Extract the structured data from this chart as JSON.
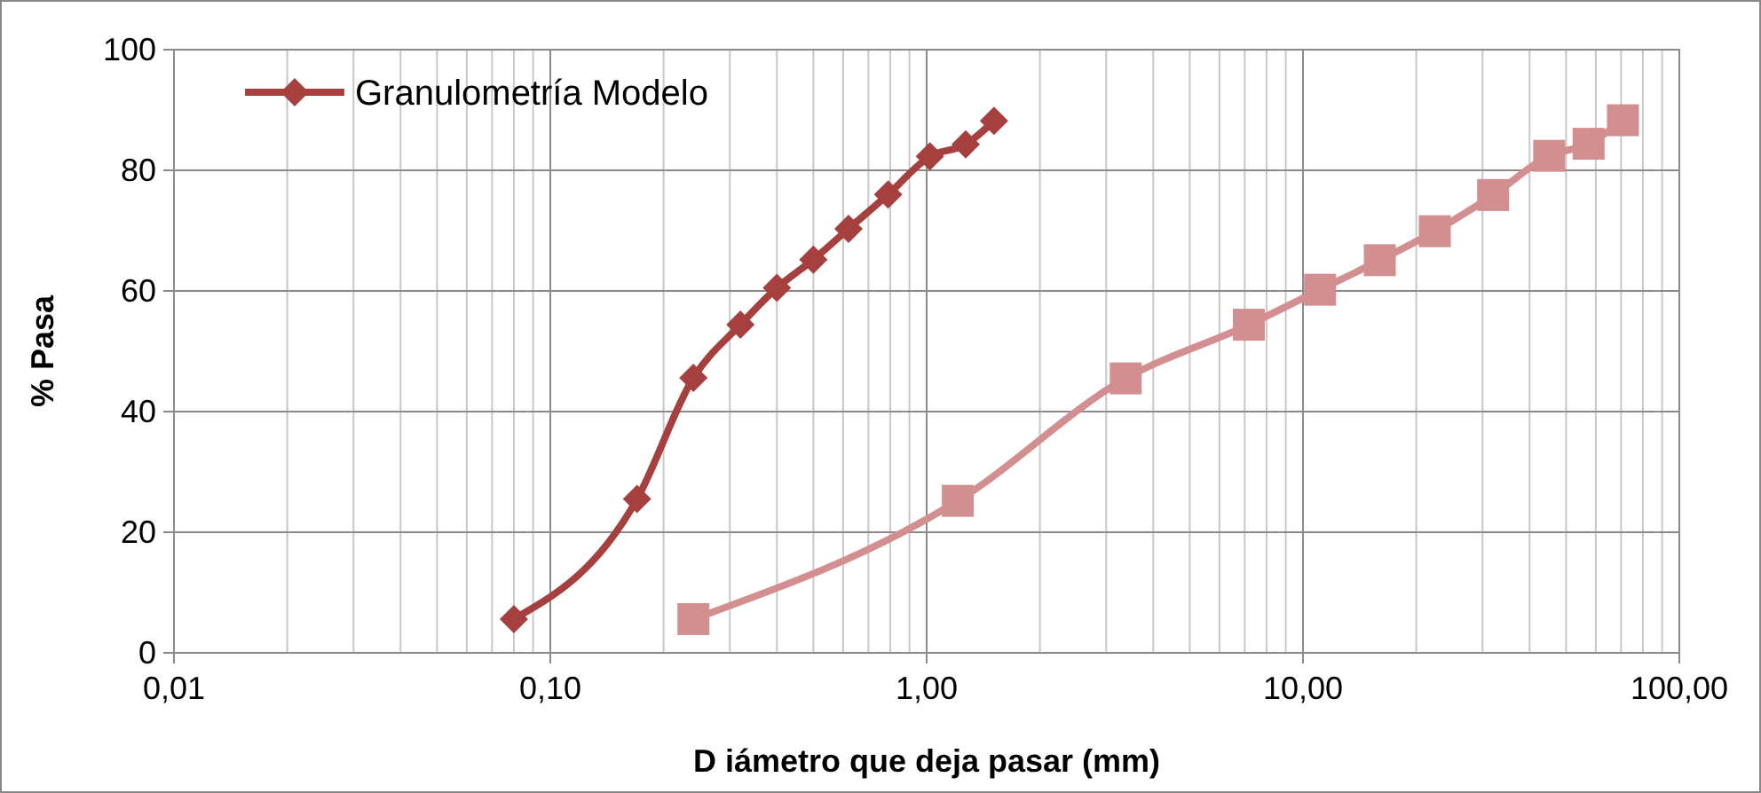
{
  "chart_data": {
    "type": "line",
    "xlabel": "D iámetro que deja pasar (mm)",
    "ylabel": "% Pasa",
    "log": "x",
    "grid": true,
    "legend": "top left",
    "xlim": [
      0.01,
      100
    ],
    "xticks": [
      {
        "value": 0.01,
        "label": "0,01"
      },
      {
        "value": 0.1,
        "label": "0,10"
      },
      {
        "value": 1,
        "label": "1,00"
      },
      {
        "value": 10,
        "label": "10,00"
      },
      {
        "value": 100,
        "label": "100,00"
      }
    ],
    "ylim": [
      0,
      100
    ],
    "yticks": [
      0,
      20,
      40,
      60,
      80,
      100
    ],
    "series": [
      {
        "name": "Granulometría Modelo",
        "color": "#a5403f",
        "marker": "diamond",
        "x": [
          0.08,
          0.17,
          0.24,
          0.32,
          0.4,
          0.5,
          0.62,
          0.79,
          1.02,
          1.27,
          1.51
        ],
        "values": [
          5.6,
          25.5,
          45.6,
          54.4,
          60.5,
          65.2,
          70.3,
          76,
          82.3,
          84.3,
          88.2
        ]
      },
      {
        "color": "#d38f8f",
        "marker": "square",
        "x": [
          0.24,
          1.21,
          3.38,
          7.18,
          11.1,
          16,
          22.4,
          32,
          45.1,
          57.4,
          70.8
        ],
        "values": [
          5.6,
          25.2,
          45.5,
          54.4,
          60.2,
          65.1,
          69.9,
          75.9,
          82.4,
          84.4,
          88.3
        ]
      }
    ]
  }
}
